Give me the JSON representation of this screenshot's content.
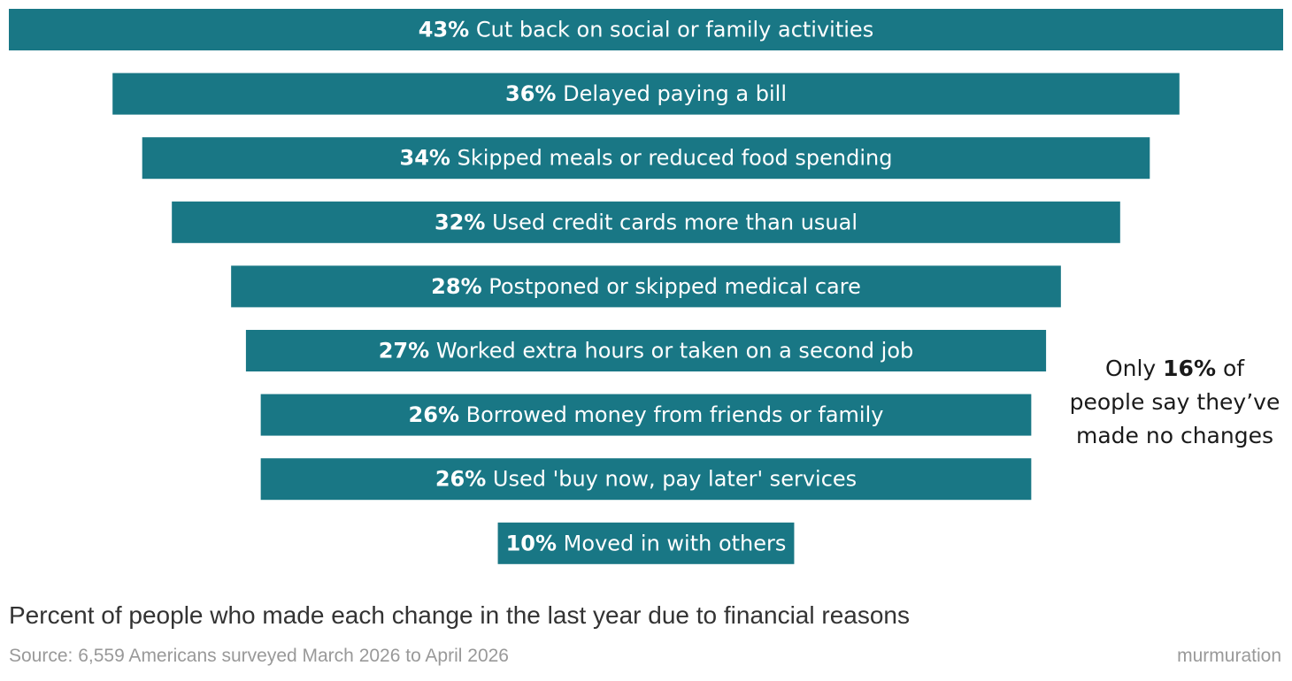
{
  "chart_data": {
    "type": "bar",
    "orientation": "horizontal-centered-funnel",
    "unit": "%",
    "categories": [
      "Cut back on social or family activities",
      "Delayed paying a bill",
      "Skipped meals or reduced food spending",
      "Used credit cards more than usual",
      "Postponed or skipped medical care",
      "Worked extra hours or taken on a second job",
      "Borrowed money from friends or family",
      "Used 'buy now, pay later' services",
      "Moved in with others"
    ],
    "values": [
      43,
      36,
      34,
      32,
      28,
      27,
      26,
      26,
      10
    ],
    "bar_color": "#197785",
    "label_color": "#ffffff",
    "caption": "Percent of people who made each change in the last year due to financial reasons",
    "source": "Source: 6,559 Americans surveyed March 2026 to April 2026"
  },
  "callout": {
    "prefix": "Only ",
    "highlight": "16%",
    "suffix": " of people say they’ve made no changes"
  },
  "brand": "murmuration"
}
